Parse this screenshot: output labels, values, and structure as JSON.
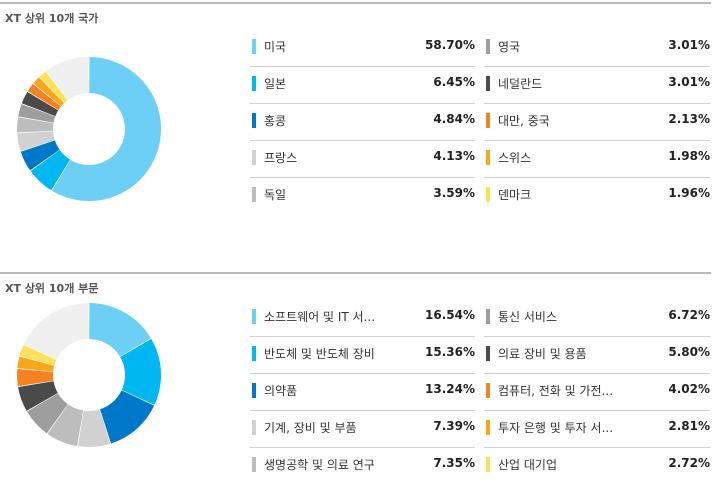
{
  "chart_data": [
    {
      "type": "pie",
      "title": "XT 상위 10개 국가",
      "categories": [
        "미국",
        "일본",
        "홍콩",
        "프랑스",
        "독일",
        "영국",
        "네덜란드",
        "대만, 중국",
        "스위스",
        "덴마크"
      ],
      "values": [
        "58.70%",
        "6.45%",
        "4.84%",
        "4.13%",
        "3.59%",
        "3.01%",
        "3.01%",
        "2.13%",
        "1.98%",
        "1.96%"
      ],
      "numeric_values": [
        58.7,
        6.45,
        4.84,
        4.13,
        3.59,
        3.01,
        3.01,
        2.13,
        1.98,
        1.96
      ],
      "colors": [
        "#6ecff6",
        "#00b7f1",
        "#0077c8",
        "#d1d1d1",
        "#bdbdbd",
        "#9e9e9e",
        "#4a4a4a",
        "#f58220",
        "#faa61a",
        "#ffe05a"
      ],
      "other_color": "#f0f0f0"
    },
    {
      "type": "pie",
      "title": "XT 상위 10개 부문",
      "categories": [
        "소프트웨어 및 IT 서...",
        "반도체 및 반도체 장비",
        "의약품",
        "기계, 장비 및 부품",
        "생명공학 및 의료 연구",
        "통신 서비스",
        "의료 장비 및 용품",
        "컴퓨터, 전화 및 가전...",
        "투자 은행 및 투자 서...",
        "산업 대기업"
      ],
      "values": [
        "16.54%",
        "15.36%",
        "13.24%",
        "7.39%",
        "7.35%",
        "6.72%",
        "5.80%",
        "4.02%",
        "2.81%",
        "2.72%"
      ],
      "numeric_values": [
        16.54,
        15.36,
        13.24,
        7.39,
        7.35,
        6.72,
        5.8,
        4.02,
        2.81,
        2.72
      ],
      "colors": [
        "#6ecff6",
        "#00b7f1",
        "#0077c8",
        "#d1d1d1",
        "#bdbdbd",
        "#9e9e9e",
        "#4a4a4a",
        "#f58220",
        "#faa61a",
        "#ffe05a"
      ],
      "other_color": "#f0f0f0"
    }
  ]
}
